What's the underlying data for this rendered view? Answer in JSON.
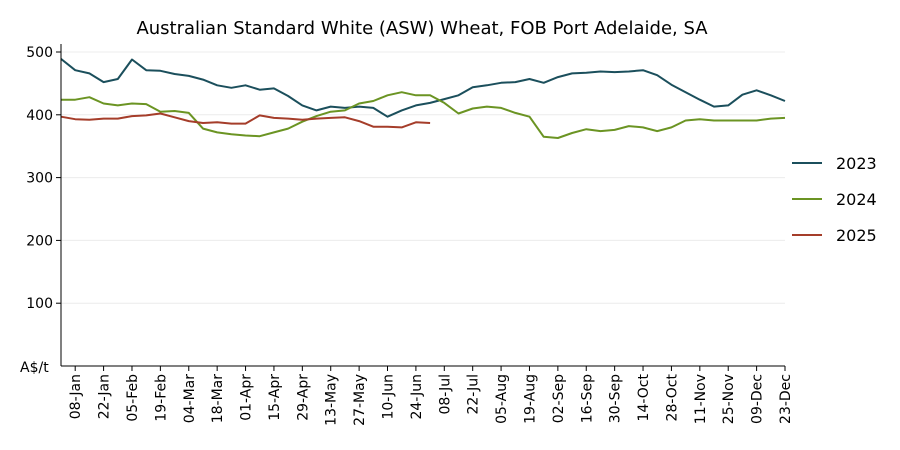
{
  "chart_data": {
    "type": "line",
    "title": "Australian Standard White (ASW) Wheat, FOB Port Adelaide, SA",
    "ylabel": "A$/t",
    "ylim": [
      0,
      500
    ],
    "yticks": [
      100,
      200,
      300,
      400,
      500
    ],
    "grid": "horizontal",
    "legend_position": "right",
    "x_tick_labels": [
      "08-Jan",
      "22-Jan",
      "05-Feb",
      "19-Feb",
      "04-Mar",
      "18-Mar",
      "01-Apr",
      "15-Apr",
      "29-Apr",
      "13-May",
      "27-May",
      "10-Jun",
      "24-Jun",
      "08-Jul",
      "22-Jul",
      "05-Aug",
      "19-Aug",
      "02-Sep",
      "16-Sep",
      "30-Sep",
      "14-Oct",
      "28-Oct",
      "11-Nov",
      "25-Nov",
      "09-Dec",
      "23-Dec"
    ],
    "series": [
      {
        "name": "2023",
        "color": "#1b4f5c",
        "values": [
          489,
          471,
          466,
          452,
          457,
          488,
          471,
          470,
          465,
          462,
          456,
          447,
          443,
          447,
          440,
          442,
          430,
          415,
          407,
          413,
          411,
          413,
          411,
          397,
          407,
          415,
          419,
          425,
          431,
          444,
          447,
          451,
          452,
          457,
          451,
          460,
          466,
          467,
          469,
          468,
          469,
          471,
          463,
          448,
          436,
          424,
          413,
          415,
          432,
          439,
          431,
          422
        ]
      },
      {
        "name": "2024",
        "color": "#6b9423",
        "values": [
          424,
          424,
          428,
          418,
          415,
          418,
          417,
          405,
          406,
          403,
          378,
          372,
          369,
          367,
          366,
          372,
          378,
          389,
          398,
          405,
          407,
          418,
          422,
          431,
          436,
          431,
          431,
          419,
          402,
          410,
          413,
          411,
          403,
          397,
          365,
          363,
          371,
          377,
          374,
          376,
          382,
          380,
          374,
          380,
          391,
          393,
          391,
          391,
          391,
          391,
          394,
          395
        ]
      },
      {
        "name": "2025",
        "color": "#a53d2a",
        "values": [
          397,
          393,
          392,
          394,
          394,
          398,
          399,
          402,
          396,
          390,
          387,
          388,
          386,
          386,
          399,
          395,
          394,
          392,
          394,
          395,
          396,
          390,
          381,
          381,
          380,
          388,
          387
        ]
      }
    ]
  }
}
